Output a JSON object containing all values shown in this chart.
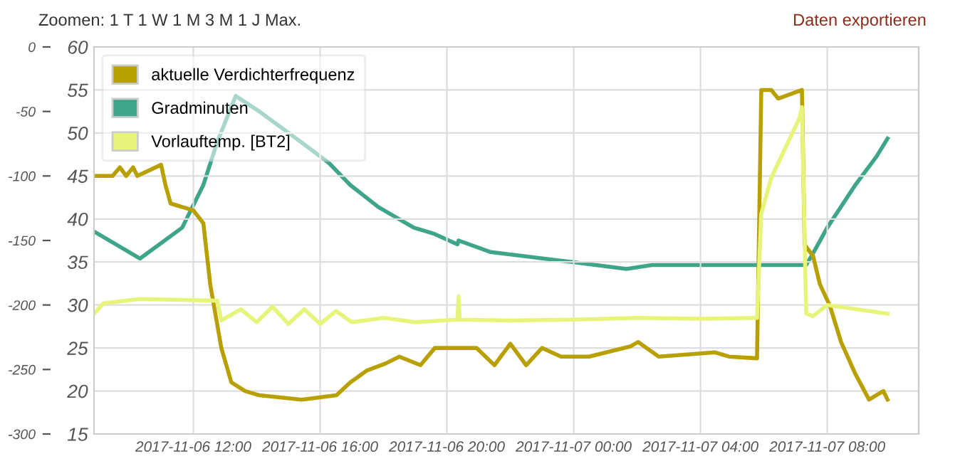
{
  "chart_data": {
    "type": "line",
    "annotations": [
      "Zoomen: 1 T 1 W 1 M 3 M 1 J Max.",
      "Daten exportieren"
    ],
    "xlim": [
      "2017-11-06T08:52",
      "2017-11-07T10:53"
    ],
    "xticks": [
      {
        "value": "2017-11-06T12:00",
        "label": "2017-11-06 12:00"
      },
      {
        "value": "2017-11-06T16:00",
        "label": "2017-11-06 16:00"
      },
      {
        "value": "2017-11-06T20:00",
        "label": "2017-11-06 20:00"
      },
      {
        "value": "2017-11-07T00:00",
        "label": "2017-11-07 00:00"
      },
      {
        "value": "2017-11-07T04:00",
        "label": "2017-11-07 04:00"
      },
      {
        "value": "2017-11-07T08:00",
        "label": "2017-11-07 08:00"
      }
    ],
    "ylim": [
      15,
      60
    ],
    "yticks": [
      15,
      20,
      25,
      30,
      35,
      40,
      45,
      50,
      55,
      60
    ],
    "y2lim": [
      -300,
      0
    ],
    "y2ticks": [
      -300,
      -250,
      -200,
      -150,
      -100,
      -50,
      0
    ],
    "grid": true,
    "legend": "top left",
    "line_style": "solid",
    "series": [
      {
        "name": "aktuelle Verdichterfrequenz",
        "color": "#b8a000",
        "x": [
          "2017-11-06T08:52",
          "2017-11-06T09:27",
          "2017-11-06T09:41",
          "2017-11-06T09:53",
          "2017-11-06T10:06",
          "2017-11-06T10:14",
          "2017-11-06T10:59",
          "2017-11-06T11:07",
          "2017-11-06T11:17",
          "2017-11-06T12:00",
          "2017-11-06T12:19",
          "2017-11-06T12:32",
          "2017-11-06T12:53",
          "2017-11-06T13:12",
          "2017-11-06T13:38",
          "2017-11-06T14:05",
          "2017-11-06T15:25",
          "2017-11-06T16:31",
          "2017-11-06T16:57",
          "2017-11-06T17:29",
          "2017-11-06T18:04",
          "2017-11-06T18:30",
          "2017-11-06T19:10",
          "2017-11-06T19:37",
          "2017-11-06T20:56",
          "2017-11-06T21:30",
          "2017-11-06T22:00",
          "2017-11-06T22:30",
          "2017-11-06T23:00",
          "2017-11-06T23:36",
          "2017-11-07T00:29",
          "2017-11-07T01:48",
          "2017-11-07T02:02",
          "2017-11-07T02:41",
          "2017-11-07T04:27",
          "2017-11-07T04:54",
          "2017-11-07T05:47",
          "2017-11-07T05:55",
          "2017-11-07T06:14",
          "2017-11-07T06:27",
          "2017-11-07T07:12",
          "2017-11-07T07:17",
          "2017-11-07T07:33",
          "2017-11-07T07:46",
          "2017-11-07T08:05",
          "2017-11-07T08:26",
          "2017-11-07T08:53",
          "2017-11-07T09:19",
          "2017-11-07T09:46",
          "2017-11-07T09:54"
        ],
        "values": [
          45,
          45,
          46,
          45,
          46,
          45,
          46.3,
          44,
          41.8,
          41,
          39.5,
          32.4,
          25,
          21,
          20,
          19.5,
          19,
          19.5,
          21,
          22.4,
          23.2,
          24,
          23,
          25,
          25,
          23,
          25.5,
          23,
          25,
          24,
          24,
          25.2,
          25.7,
          24,
          24.5,
          24,
          23.8,
          55,
          55,
          54,
          55,
          37,
          35.7,
          32.4,
          29.9,
          25.7,
          22,
          19,
          20,
          19
        ]
      },
      {
        "name": "Gradminuten",
        "color": "#3fa58a",
        "axis": "y2",
        "x": [
          "2017-11-06T08:52",
          "2017-11-06T10:19",
          "2017-11-06T11:39",
          "2017-11-06T12:19",
          "2017-11-06T12:45",
          "2017-11-06T13:20",
          "2017-11-06T14:05",
          "2017-11-06T15:25",
          "2017-11-06T16:17",
          "2017-11-06T16:57",
          "2017-11-06T17:50",
          "2017-11-06T18:57",
          "2017-11-06T19:37",
          "2017-11-06T20:20",
          "2017-11-06T20:22",
          "2017-11-06T21:23",
          "2017-11-07T00:02",
          "2017-11-07T01:40",
          "2017-11-07T02:28",
          "2017-11-07T06:01",
          "2017-11-07T07:20",
          "2017-11-07T07:33",
          "2017-11-07T08:00",
          "2017-11-07T08:53",
          "2017-11-07T09:33",
          "2017-11-07T09:54"
        ],
        "values": [
          -143,
          -164,
          -140,
          -107,
          -74,
          -38,
          -50,
          -74,
          -90,
          -107,
          -124,
          -140,
          -145,
          -153,
          -150,
          -159,
          -167,
          -172,
          -169,
          -169,
          -169,
          -160,
          -140,
          -107,
          -85,
          -71
        ]
      },
      {
        "name": "Vorlauftemp. [BT2]",
        "color": "#e6f57a",
        "x": [
          "2017-11-06T08:52",
          "2017-11-06T09:10",
          "2017-11-06T10:19",
          "2017-11-06T12:45",
          "2017-11-06T12:53",
          "2017-11-06T13:30",
          "2017-11-06T14:00",
          "2017-11-06T14:30",
          "2017-11-06T15:00",
          "2017-11-06T15:30",
          "2017-11-06T16:00",
          "2017-11-06T16:30",
          "2017-11-06T17:00",
          "2017-11-06T18:00",
          "2017-11-06T19:00",
          "2017-11-06T20:20",
          "2017-11-06T20:22",
          "2017-11-06T20:24",
          "2017-11-06T22:00",
          "2017-11-07T00:00",
          "2017-11-07T02:00",
          "2017-11-07T04:00",
          "2017-11-07T05:47",
          "2017-11-07T05:55",
          "2017-11-07T06:14",
          "2017-11-07T07:07",
          "2017-11-07T07:12",
          "2017-11-07T07:20",
          "2017-11-07T07:33",
          "2017-11-07T08:00",
          "2017-11-07T09:54"
        ],
        "values": [
          29,
          30.2,
          30.7,
          30.5,
          28.2,
          29.5,
          28,
          29.8,
          27.8,
          29.5,
          27.8,
          29.3,
          28,
          28.5,
          28,
          28.3,
          31,
          28.3,
          28.2,
          28.3,
          28.5,
          28.4,
          28.5,
          40.6,
          44.8,
          51.7,
          53,
          29,
          28.7,
          30,
          29
        ]
      }
    ]
  }
}
